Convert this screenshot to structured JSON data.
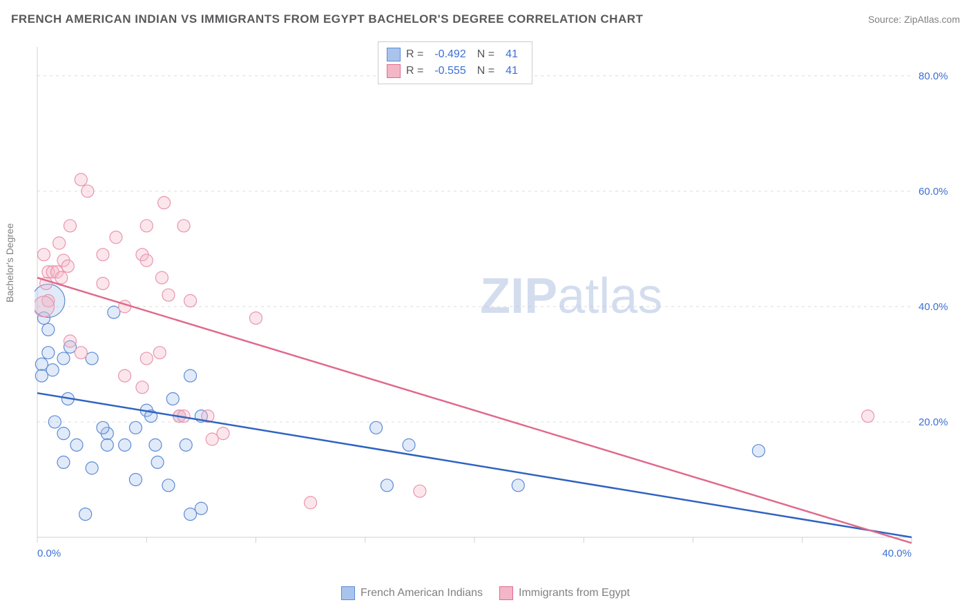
{
  "header": {
    "title": "FRENCH AMERICAN INDIAN VS IMMIGRANTS FROM EGYPT BACHELOR'S DEGREE CORRELATION CHART",
    "source": "Source: ZipAtlas.com"
  },
  "watermark": {
    "bold": "ZIP",
    "light": "atlas"
  },
  "chart": {
    "type": "scatter",
    "ylabel": "Bachelor's Degree",
    "background_color": "#ffffff",
    "grid_color": "#dcdcdc",
    "axis_color": "#d0d0d0",
    "tick_color": "#d0d0d0",
    "ytick_label_color": "#3b6fd6",
    "xtick_label_color": "#3b6fd6",
    "label_color": "#808080",
    "title_color": "#58595b",
    "xlim": [
      0,
      40
    ],
    "ylim": [
      0,
      85
    ],
    "xtick_step": 5,
    "ytick_step": 20,
    "ytick_min": 20,
    "ytick_max": 80,
    "ytick_format_suffix": ".0%",
    "xtick_labels": [
      {
        "x": 0,
        "label": "0.0%"
      },
      {
        "x": 40,
        "label": "40.0%"
      }
    ],
    "marker_radius": 9,
    "marker_fill_opacity": 0.35,
    "trend_line_width": 2.5,
    "axis_line_width": 1,
    "title_fontsize": 17,
    "label_fontsize": 14,
    "tick_fontsize": 15
  },
  "legend_top": {
    "rows": [
      {
        "swatch_fill": "#a9c4ec",
        "swatch_stroke": "#5b8bd6",
        "r_label": "R =",
        "r": "-0.492",
        "n_label": "N =",
        "n": "41"
      },
      {
        "swatch_fill": "#f4b6c6",
        "swatch_stroke": "#e06a8c",
        "r_label": "R =",
        "r": "-0.555",
        "n_label": "N =",
        "n": "41"
      }
    ]
  },
  "legend_bottom": {
    "items": [
      {
        "swatch_fill": "#a9c4ec",
        "swatch_stroke": "#5b8bd6",
        "label": "French American Indians"
      },
      {
        "swatch_fill": "#f4b6c6",
        "swatch_stroke": "#e06a8c",
        "label": "Immigrants from Egypt"
      }
    ]
  },
  "series": [
    {
      "name": "French American Indians",
      "color_fill": "#a9c4ec",
      "color_stroke": "#5b8bd6",
      "trend_color": "#2f63c0",
      "trend": {
        "x1": 0,
        "y1": 25,
        "x2": 40,
        "y2": 0
      },
      "points": [
        {
          "x": 0.3,
          "y": 38,
          "r": 9
        },
        {
          "x": 0.5,
          "y": 36,
          "r": 9
        },
        {
          "x": 1.5,
          "y": 33,
          "r": 9
        },
        {
          "x": 0.5,
          "y": 32,
          "r": 9
        },
        {
          "x": 1.2,
          "y": 31,
          "r": 9
        },
        {
          "x": 2.5,
          "y": 31,
          "r": 9
        },
        {
          "x": 3.5,
          "y": 39,
          "r": 9
        },
        {
          "x": 0.7,
          "y": 29,
          "r": 9
        },
        {
          "x": 7.0,
          "y": 28,
          "r": 9
        },
        {
          "x": 1.4,
          "y": 24,
          "r": 9
        },
        {
          "x": 6.2,
          "y": 24,
          "r": 9
        },
        {
          "x": 5.0,
          "y": 22,
          "r": 9
        },
        {
          "x": 5.2,
          "y": 21,
          "r": 9
        },
        {
          "x": 6.5,
          "y": 21,
          "r": 9
        },
        {
          "x": 7.5,
          "y": 21,
          "r": 9
        },
        {
          "x": 1.2,
          "y": 18,
          "r": 9
        },
        {
          "x": 3.2,
          "y": 18,
          "r": 9
        },
        {
          "x": 4.5,
          "y": 19,
          "r": 9
        },
        {
          "x": 1.8,
          "y": 16,
          "r": 9
        },
        {
          "x": 3.2,
          "y": 16,
          "r": 9
        },
        {
          "x": 4.0,
          "y": 16,
          "r": 9
        },
        {
          "x": 5.4,
          "y": 16,
          "r": 9
        },
        {
          "x": 1.2,
          "y": 13,
          "r": 9
        },
        {
          "x": 5.5,
          "y": 13,
          "r": 9
        },
        {
          "x": 2.5,
          "y": 12,
          "r": 9
        },
        {
          "x": 4.5,
          "y": 10,
          "r": 9
        },
        {
          "x": 6.0,
          "y": 9,
          "r": 9
        },
        {
          "x": 7.0,
          "y": 4,
          "r": 9
        },
        {
          "x": 2.2,
          "y": 4,
          "r": 9
        },
        {
          "x": 7.5,
          "y": 5,
          "r": 9
        },
        {
          "x": 15.5,
          "y": 19,
          "r": 9
        },
        {
          "x": 17.0,
          "y": 16,
          "r": 9
        },
        {
          "x": 16.0,
          "y": 9,
          "r": 9
        },
        {
          "x": 22.0,
          "y": 9,
          "r": 9
        },
        {
          "x": 33.0,
          "y": 15,
          "r": 9
        },
        {
          "x": 0.8,
          "y": 20,
          "r": 9
        },
        {
          "x": 0.5,
          "y": 41,
          "r": 24
        },
        {
          "x": 0.2,
          "y": 30,
          "r": 9
        },
        {
          "x": 0.2,
          "y": 28,
          "r": 9
        },
        {
          "x": 3.0,
          "y": 19,
          "r": 9
        },
        {
          "x": 6.8,
          "y": 16,
          "r": 9
        }
      ]
    },
    {
      "name": "Immigrants from Egypt",
      "color_fill": "#f4b6c6",
      "color_stroke": "#e994ae",
      "trend_color": "#e06a8c",
      "trend": {
        "x1": 0,
        "y1": 45,
        "x2": 40,
        "y2": -1
      },
      "points": [
        {
          "x": 2.0,
          "y": 62,
          "r": 9
        },
        {
          "x": 2.3,
          "y": 60,
          "r": 9
        },
        {
          "x": 5.8,
          "y": 58,
          "r": 9
        },
        {
          "x": 1.5,
          "y": 54,
          "r": 9
        },
        {
          "x": 5.0,
          "y": 54,
          "r": 9
        },
        {
          "x": 6.7,
          "y": 54,
          "r": 9
        },
        {
          "x": 3.6,
          "y": 52,
          "r": 9
        },
        {
          "x": 0.3,
          "y": 49,
          "r": 9
        },
        {
          "x": 1.2,
          "y": 48,
          "r": 9
        },
        {
          "x": 4.8,
          "y": 49,
          "r": 9
        },
        {
          "x": 5.0,
          "y": 48,
          "r": 9
        },
        {
          "x": 0.5,
          "y": 46,
          "r": 9
        },
        {
          "x": 0.7,
          "y": 46,
          "r": 9
        },
        {
          "x": 0.9,
          "y": 46,
          "r": 9
        },
        {
          "x": 1.1,
          "y": 45,
          "r": 9
        },
        {
          "x": 1.4,
          "y": 47,
          "r": 9
        },
        {
          "x": 5.7,
          "y": 45,
          "r": 9
        },
        {
          "x": 3.0,
          "y": 44,
          "r": 9
        },
        {
          "x": 6.0,
          "y": 42,
          "r": 9
        },
        {
          "x": 0.5,
          "y": 41,
          "r": 9
        },
        {
          "x": 4.0,
          "y": 40,
          "r": 9
        },
        {
          "x": 7.0,
          "y": 41,
          "r": 9
        },
        {
          "x": 10.0,
          "y": 38,
          "r": 9
        },
        {
          "x": 1.5,
          "y": 34,
          "r": 9
        },
        {
          "x": 5.6,
          "y": 32,
          "r": 9
        },
        {
          "x": 2.0,
          "y": 32,
          "r": 9
        },
        {
          "x": 4.8,
          "y": 26,
          "r": 9
        },
        {
          "x": 6.5,
          "y": 21,
          "r": 9
        },
        {
          "x": 6.7,
          "y": 21,
          "r": 9
        },
        {
          "x": 8.5,
          "y": 18,
          "r": 9
        },
        {
          "x": 7.8,
          "y": 21,
          "r": 9
        },
        {
          "x": 8.0,
          "y": 17,
          "r": 9
        },
        {
          "x": 12.5,
          "y": 6,
          "r": 9
        },
        {
          "x": 17.5,
          "y": 8,
          "r": 9
        },
        {
          "x": 38.0,
          "y": 21,
          "r": 9
        },
        {
          "x": 0.4,
          "y": 44,
          "r": 9
        },
        {
          "x": 0.3,
          "y": 40,
          "r": 15
        },
        {
          "x": 3.0,
          "y": 49,
          "r": 9
        },
        {
          "x": 5.0,
          "y": 31,
          "r": 9
        },
        {
          "x": 4.0,
          "y": 28,
          "r": 9
        },
        {
          "x": 1.0,
          "y": 51,
          "r": 9
        }
      ]
    }
  ]
}
